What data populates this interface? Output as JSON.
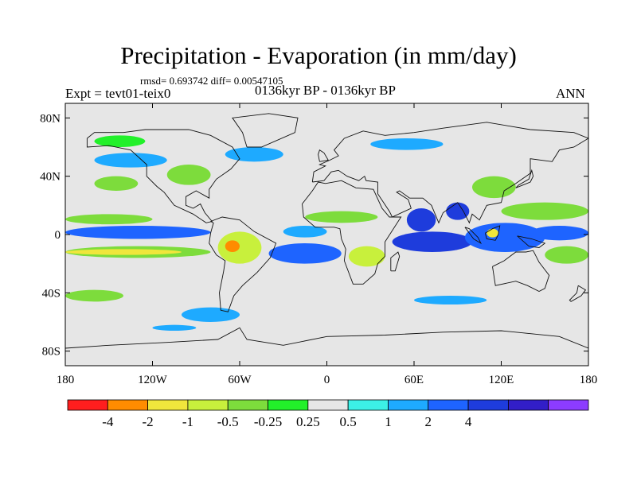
{
  "chart_data": {
    "type": "heatmap",
    "title": "Precipitation - Evaporation (in mm/day)",
    "stats": "rmsd= 0.693742 diff= 0.00547105",
    "left_label": "Expt = tevt01-teix0",
    "center_label": "0136kyr BP - 0136kyr BP",
    "right_label": "ANN",
    "projection": "cylindrical-equidistant",
    "lon_range": [
      -180,
      180
    ],
    "lat_range": [
      -90,
      90
    ],
    "x_ticks": [
      {
        "value": -180,
        "label": "180"
      },
      {
        "value": -120,
        "label": "120W"
      },
      {
        "value": -60,
        "label": "60W"
      },
      {
        "value": 0,
        "label": "0"
      },
      {
        "value": 60,
        "label": "60E"
      },
      {
        "value": 120,
        "label": "120E"
      },
      {
        "value": 180,
        "label": "180"
      }
    ],
    "y_ticks": [
      {
        "value": 80,
        "label": "80N"
      },
      {
        "value": 40,
        "label": "40N"
      },
      {
        "value": 0,
        "label": "0"
      },
      {
        "value": -40,
        "label": "40S"
      },
      {
        "value": -80,
        "label": "80S"
      }
    ],
    "colorbar": {
      "colors": [
        "#ff1e1e",
        "#ff8c00",
        "#f0e63c",
        "#c8f03c",
        "#7ddc3c",
        "#22f02a",
        "#e6e6e6",
        "#3cf0e6",
        "#1eaaff",
        "#1e64ff",
        "#1e3cdc",
        "#321ec8",
        "#8c3cff"
      ],
      "labels": [
        "-4",
        "-2",
        "-1",
        "-0.5",
        "-0.25",
        "0.25",
        "0.5",
        "1",
        "2",
        "4"
      ]
    },
    "anomaly_regions": [
      {
        "name": "equatorial-pacific-wet-band",
        "category": 9,
        "lon": [
          -180,
          -80
        ],
        "lat": [
          -3,
          6
        ]
      },
      {
        "name": "east-pacific-dry-south",
        "category": 4,
        "lon": [
          -180,
          -80
        ],
        "lat": [
          -16,
          -8
        ]
      },
      {
        "name": "south-pacific-dry-tongue",
        "category": 2,
        "lon": [
          -180,
          -100
        ],
        "lat": [
          -14,
          -10
        ]
      },
      {
        "name": "north-pacific-dry-band",
        "category": 4,
        "lon": [
          -180,
          -120
        ],
        "lat": [
          7,
          14
        ]
      },
      {
        "name": "north-pacific-mid-lat-wet",
        "category": 8,
        "lon": [
          -160,
          -110
        ],
        "lat": [
          46,
          56
        ]
      },
      {
        "name": "north-pacific-green-patch",
        "category": 4,
        "lon": [
          -160,
          -130
        ],
        "lat": [
          30,
          40
        ]
      },
      {
        "name": "alaska-dry",
        "category": 5,
        "lon": [
          -160,
          -125
        ],
        "lat": [
          60,
          68
        ]
      },
      {
        "name": "north-america-dry",
        "category": 4,
        "lon": [
          -110,
          -80
        ],
        "lat": [
          34,
          48
        ]
      },
      {
        "name": "north-atlantic-wet",
        "category": 8,
        "lon": [
          -70,
          -30
        ],
        "lat": [
          50,
          60
        ]
      },
      {
        "name": "amazon-dry",
        "category": 3,
        "lon": [
          -75,
          -45
        ],
        "lat": [
          -20,
          2
        ]
      },
      {
        "name": "amazon-core-dry",
        "category": 1,
        "lon": [
          -70,
          -60
        ],
        "lat": [
          -12,
          -4
        ]
      },
      {
        "name": "south-atlantic-wet",
        "category": 9,
        "lon": [
          -40,
          10
        ],
        "lat": [
          -20,
          -6
        ]
      },
      {
        "name": "tropical-atlantic-wet",
        "category": 8,
        "lon": [
          -30,
          0
        ],
        "lat": [
          -2,
          6
        ]
      },
      {
        "name": "africa-sahel-dry",
        "category": 4,
        "lon": [
          -15,
          35
        ],
        "lat": [
          8,
          16
        ]
      },
      {
        "name": "africa-south-dry",
        "category": 3,
        "lon": [
          15,
          40
        ],
        "lat": [
          -22,
          -8
        ]
      },
      {
        "name": "arabian-sea-wet",
        "category": 10,
        "lon": [
          55,
          75
        ],
        "lat": [
          2,
          18
        ]
      },
      {
        "name": "indian-ocean-wet",
        "category": 10,
        "lon": [
          45,
          100
        ],
        "lat": [
          -12,
          2
        ]
      },
      {
        "name": "bay-of-bengal-wet",
        "category": 10,
        "lon": [
          82,
          98
        ],
        "lat": [
          10,
          22
        ]
      },
      {
        "name": "maritime-continent-wet",
        "category": 9,
        "lon": [
          95,
          150
        ],
        "lat": [
          -12,
          8
        ]
      },
      {
        "name": "borneo-dry",
        "category": 2,
        "lon": [
          110,
          118
        ],
        "lat": [
          -2,
          4
        ]
      },
      {
        "name": "west-pacific-wet",
        "category": 9,
        "lon": [
          140,
          180
        ],
        "lat": [
          -4,
          6
        ]
      },
      {
        "name": "north-west-pacific-dry",
        "category": 4,
        "lon": [
          120,
          180
        ],
        "lat": [
          10,
          22
        ]
      },
      {
        "name": "south-pacific-convergence-dry",
        "category": 4,
        "lon": [
          150,
          180
        ],
        "lat": [
          -20,
          -8
        ]
      },
      {
        "name": "southern-ocean-wet",
        "category": 8,
        "lon": [
          -100,
          -60
        ],
        "lat": [
          -60,
          -50
        ]
      },
      {
        "name": "southern-ocean-dry",
        "category": 4,
        "lon": [
          -180,
          -140
        ],
        "lat": [
          -46,
          -38
        ]
      },
      {
        "name": "southern-indian-wet",
        "category": 8,
        "lon": [
          60,
          110
        ],
        "lat": [
          -48,
          -42
        ]
      },
      {
        "name": "antarctic-coast-wet",
        "category": 8,
        "lon": [
          -120,
          -90
        ],
        "lat": [
          -66,
          -62
        ]
      },
      {
        "name": "eurasia-north-wet",
        "category": 8,
        "lon": [
          30,
          80
        ],
        "lat": [
          58,
          66
        ]
      },
      {
        "name": "china-dry",
        "category": 4,
        "lon": [
          100,
          130
        ],
        "lat": [
          25,
          40
        ]
      }
    ]
  }
}
